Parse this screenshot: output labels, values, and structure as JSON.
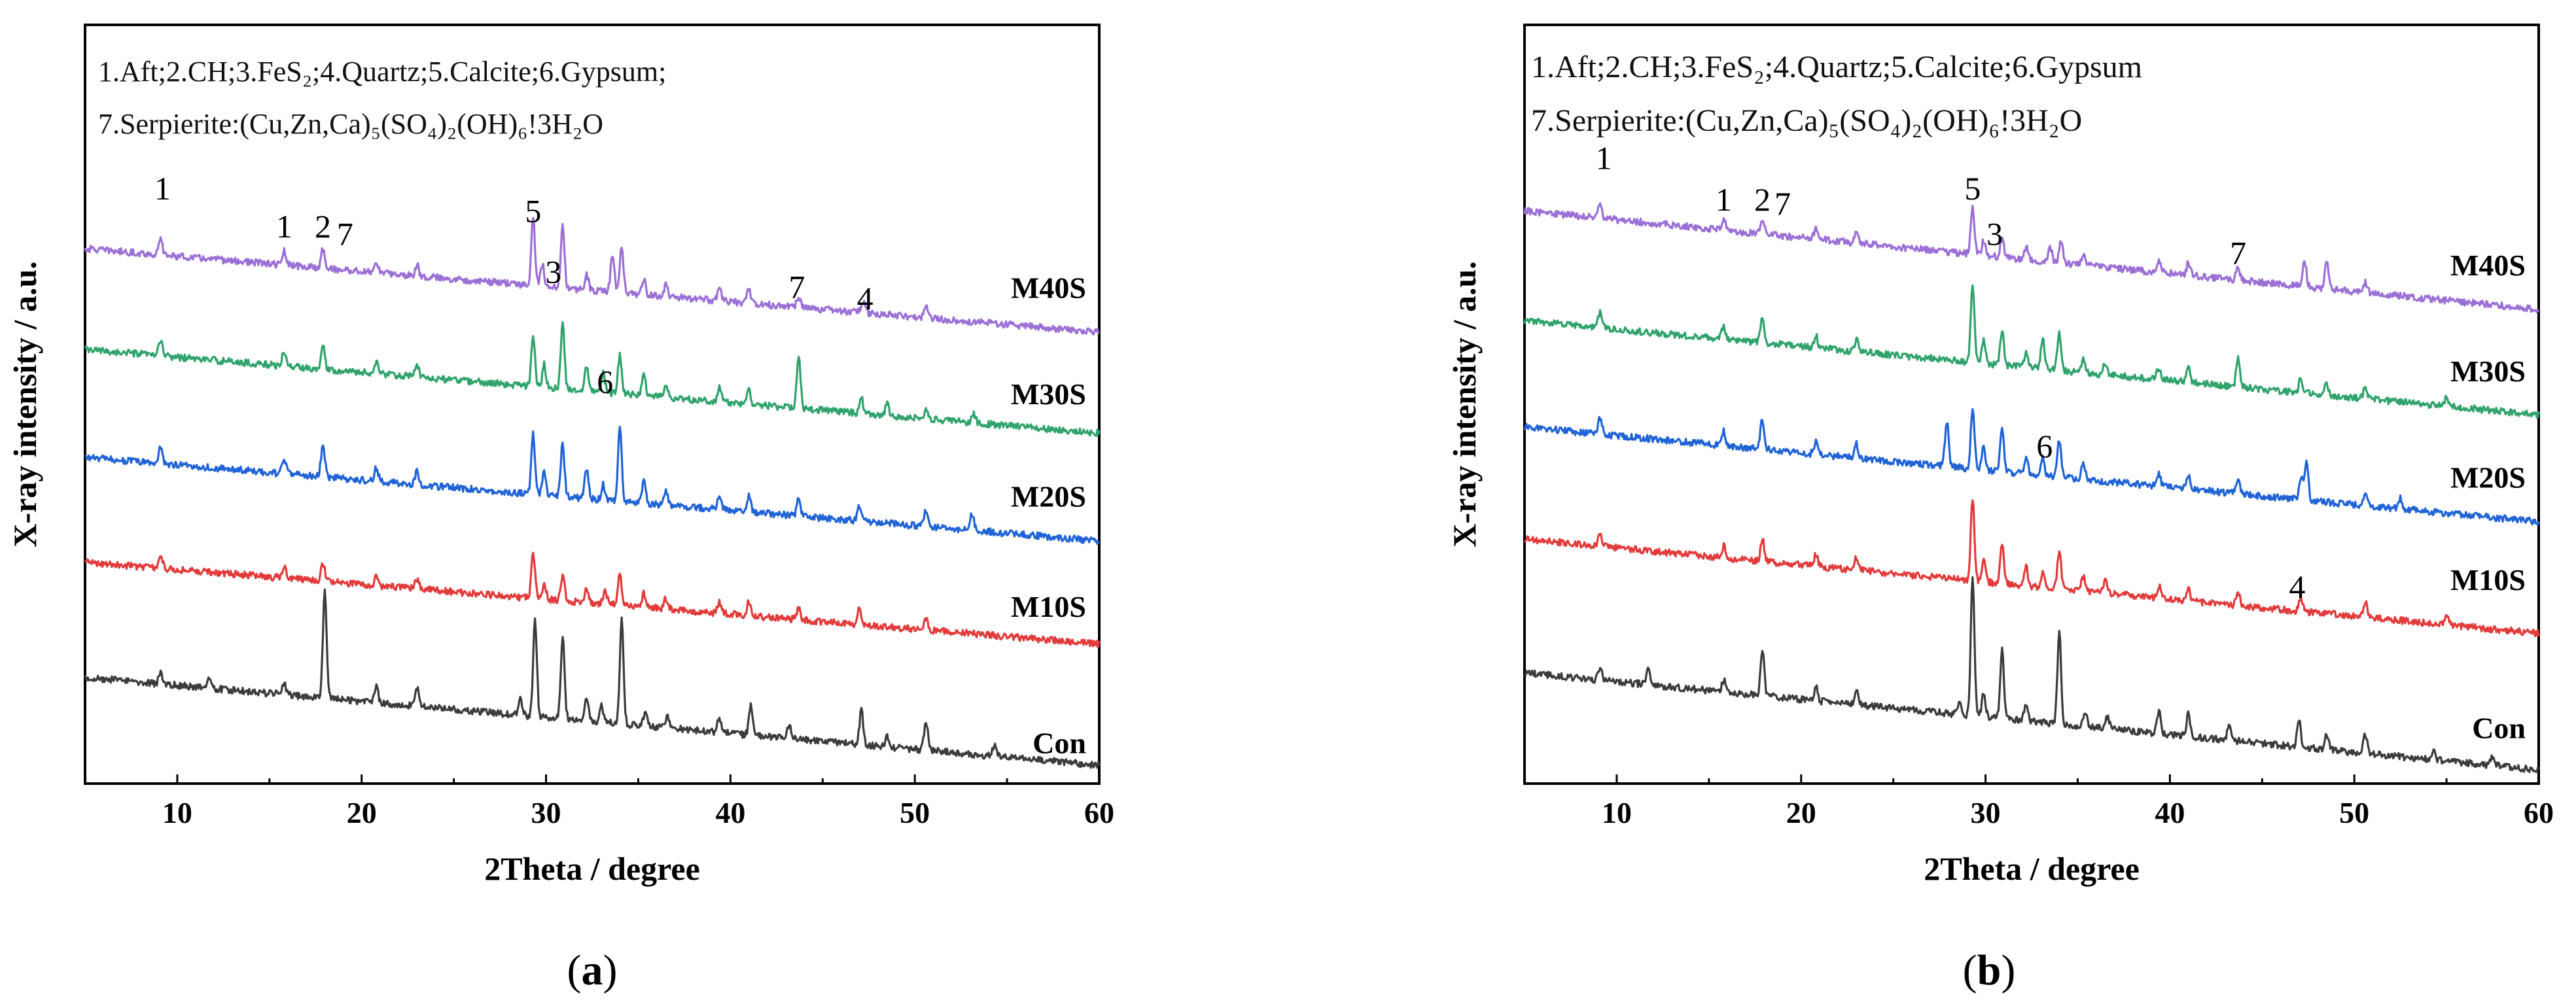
{
  "figure": {
    "panel_labels": [
      "a",
      "b"
    ],
    "colors": {
      "M40S": "#9b6fd6",
      "M30S": "#2fa36b",
      "M20S": "#1f63d6",
      "M10S": "#e23a3a",
      "Con": "#3b3b3b"
    }
  },
  "chart_data": [
    {
      "type": "line",
      "panel": "a",
      "xlabel": "2Theta / degree",
      "ylabel": "X-ray intensity / a.u.",
      "xlim": [
        5,
        60
      ],
      "ylim": [
        0,
        100
      ],
      "xticks": [
        10,
        20,
        30,
        40,
        50,
        60
      ],
      "legend_lines": [
        "1.Aft;2.CH;3.FeS₂;4.Quartz;5.Calcite;6.Gypsum;",
        "7.Serpierite:(Cu,Zn,Ca)₅(SO₄)₂(OH)₆!3H₂O"
      ],
      "series": [
        {
          "name": "M40S",
          "color": "#9b6fd6",
          "start": 70.5,
          "end": 59.5,
          "peaks": [
            [
              9.1,
              2
            ],
            [
              15.8,
              1.8
            ],
            [
              17.9,
              2.6
            ],
            [
              20.8,
              1.5
            ],
            [
              23,
              1.5
            ],
            [
              29.3,
              9
            ],
            [
              29.8,
              3
            ],
            [
              30.9,
              8
            ],
            [
              32.2,
              2
            ],
            [
              33.6,
              5
            ],
            [
              34.1,
              6
            ],
            [
              35.3,
              2
            ],
            [
              36.5,
              1.6
            ],
            [
              39.4,
              1.8
            ],
            [
              41.0,
              1.8
            ],
            [
              43.7,
              1.5
            ],
            [
              47.2,
              1.4
            ],
            [
              50.6,
              1.4
            ]
          ]
        },
        {
          "name": "M30S",
          "color": "#2fa36b",
          "start": 57.2,
          "end": 46.2,
          "peaks": [
            [
              9.1,
              2.2
            ],
            [
              15.8,
              2
            ],
            [
              17.9,
              3.5
            ],
            [
              20.8,
              1.6
            ],
            [
              23,
              1.6
            ],
            [
              29.3,
              7
            ],
            [
              29.9,
              3
            ],
            [
              30.9,
              8.5
            ],
            [
              32.2,
              3.5
            ],
            [
              33.1,
              2.5
            ],
            [
              34.0,
              5
            ],
            [
              35.3,
              3
            ],
            [
              36.5,
              1.8
            ],
            [
              39.4,
              1.8
            ],
            [
              41.0,
              2
            ],
            [
              43.7,
              7
            ],
            [
              47.1,
              2
            ],
            [
              48.5,
              1.5
            ],
            [
              50.6,
              1.4
            ],
            [
              53.2,
              1.2
            ]
          ]
        },
        {
          "name": "M20S",
          "color": "#1f63d6",
          "start": 43.0,
          "end": 32.0,
          "peaks": [
            [
              9.1,
              2.2
            ],
            [
              15.8,
              2
            ],
            [
              17.9,
              4.5
            ],
            [
              20.8,
              1.8
            ],
            [
              23,
              1.8
            ],
            [
              29.3,
              8
            ],
            [
              29.9,
              3
            ],
            [
              30.9,
              7
            ],
            [
              32.2,
              4
            ],
            [
              33.1,
              2
            ],
            [
              34.0,
              10
            ],
            [
              35.3,
              3
            ],
            [
              36.5,
              2
            ],
            [
              39.4,
              1.8
            ],
            [
              41.0,
              2
            ],
            [
              43.7,
              2.5
            ],
            [
              47.0,
              2.2
            ],
            [
              50.6,
              2
            ],
            [
              53.1,
              2.2
            ]
          ]
        },
        {
          "name": "M10S",
          "color": "#e23a3a",
          "start": 29.2,
          "end": 18.4,
          "peaks": [
            [
              9.1,
              1.6
            ],
            [
              15.8,
              1.4
            ],
            [
              17.9,
              2.5
            ],
            [
              20.8,
              1.4
            ],
            [
              23,
              1.4
            ],
            [
              29.3,
              6
            ],
            [
              29.9,
              2
            ],
            [
              30.9,
              3.5
            ],
            [
              32.2,
              2
            ],
            [
              33.2,
              2
            ],
            [
              34.0,
              4
            ],
            [
              35.3,
              1.8
            ],
            [
              36.5,
              1.5
            ],
            [
              39.4,
              1.4
            ],
            [
              41.0,
              1.8
            ],
            [
              43.7,
              1.4
            ],
            [
              47.0,
              2.2
            ],
            [
              50.6,
              1.5
            ]
          ]
        },
        {
          "name": "Con",
          "color": "#3b3b3b",
          "start": 14.0,
          "end": 2.4,
          "peaks": [
            [
              9.1,
              1.6
            ],
            [
              11.7,
              1.2
            ],
            [
              15.8,
              1.4
            ],
            [
              18.0,
              14
            ],
            [
              20.8,
              2
            ],
            [
              23.0,
              2.4
            ],
            [
              28.6,
              2.6
            ],
            [
              29.4,
              13
            ],
            [
              30.9,
              11
            ],
            [
              32.2,
              3
            ],
            [
              33.0,
              2.4
            ],
            [
              34.1,
              14
            ],
            [
              35.4,
              2
            ],
            [
              36.6,
              1.5
            ],
            [
              39.4,
              2
            ],
            [
              41.1,
              4
            ],
            [
              43.2,
              1.8
            ],
            [
              47.1,
              4.5
            ],
            [
              48.5,
              1.5
            ],
            [
              50.6,
              4
            ],
            [
              54.3,
              1.4
            ]
          ]
        }
      ],
      "series_labels": [
        {
          "text": "M40S",
          "y": 64
        },
        {
          "text": "M30S",
          "y": 50
        },
        {
          "text": "M20S",
          "y": 36.5
        },
        {
          "text": "M10S",
          "y": 22
        },
        {
          "text": "Con",
          "y": 4
        }
      ],
      "peak_markers": [
        {
          "text": "1",
          "x": 9.2,
          "y": 77
        },
        {
          "text": "1",
          "x": 15.8,
          "y": 72
        },
        {
          "text": "2",
          "x": 17.9,
          "y": 72
        },
        {
          "text": "7",
          "x": 19.1,
          "y": 71
        },
        {
          "text": "5",
          "x": 29.3,
          "y": 74
        },
        {
          "text": "3",
          "x": 30.4,
          "y": 66
        },
        {
          "text": "6",
          "x": 33.2,
          "y": 51.5
        },
        {
          "text": "7",
          "x": 43.6,
          "y": 64
        },
        {
          "text": "4",
          "x": 47.3,
          "y": 62.5
        }
      ]
    },
    {
      "type": "line",
      "panel": "b",
      "xlabel": "2Theta / degree",
      "ylabel": "X-ray intensity / a.u.",
      "xlim": [
        5,
        60
      ],
      "ylim": [
        0,
        100
      ],
      "xticks": [
        10,
        20,
        30,
        40,
        50,
        60
      ],
      "legend_lines": [
        "1.Aft;2.CH;3.FeS₂;4.Quartz;5.Calcite;6.Gypsum",
        "7.Serpierite:(Cu,Zn,Ca)₅(SO₄)₂(OH)₆!3H₂O"
      ],
      "series": [
        {
          "name": "M40S",
          "color": "#9b6fd6",
          "start": 75.5,
          "end": 62.5,
          "peaks": [
            [
              9.1,
              1.8
            ],
            [
              15.8,
              1.6
            ],
            [
              17.9,
              2
            ],
            [
              20.8,
              1.4
            ],
            [
              23,
              1.4
            ],
            [
              29.3,
              6
            ],
            [
              29.9,
              2
            ],
            [
              30.9,
              2.5
            ],
            [
              32.2,
              1.6
            ],
            [
              33.5,
              2
            ],
            [
              34.1,
              3
            ],
            [
              35.3,
              1.5
            ],
            [
              39.4,
              1.6
            ],
            [
              41.0,
              1.6
            ],
            [
              43.7,
              1.6
            ],
            [
              47.3,
              3.5
            ],
            [
              48.5,
              4
            ],
            [
              50.6,
              1.4
            ]
          ]
        },
        {
          "name": "M30S",
          "color": "#2fa36b",
          "start": 61.0,
          "end": 48.6,
          "peaks": [
            [
              9.1,
              2
            ],
            [
              15.8,
              1.8
            ],
            [
              17.9,
              3.5
            ],
            [
              20.8,
              1.6
            ],
            [
              23,
              1.6
            ],
            [
              29.3,
              10
            ],
            [
              29.9,
              3
            ],
            [
              30.9,
              4.5
            ],
            [
              32.2,
              2
            ],
            [
              33.1,
              4
            ],
            [
              34.0,
              5
            ],
            [
              35.3,
              2
            ],
            [
              36.5,
              1.6
            ],
            [
              39.4,
              1.6
            ],
            [
              41.0,
              1.8
            ],
            [
              43.7,
              4
            ],
            [
              47.1,
              2
            ],
            [
              48.5,
              1.6
            ],
            [
              50.6,
              1.4
            ],
            [
              55,
              1.2
            ]
          ]
        },
        {
          "name": "M20S",
          "color": "#1f63d6",
          "start": 47.0,
          "end": 34.5,
          "peaks": [
            [
              9.1,
              2.2
            ],
            [
              15.8,
              2
            ],
            [
              17.9,
              4
            ],
            [
              20.8,
              1.8
            ],
            [
              23,
              1.8
            ],
            [
              27.9,
              6
            ],
            [
              29.3,
              8
            ],
            [
              29.9,
              3
            ],
            [
              30.9,
              6
            ],
            [
              32.2,
              2
            ],
            [
              33.1,
              2.5
            ],
            [
              34.0,
              5
            ],
            [
              35.3,
              2
            ],
            [
              39.4,
              1.8
            ],
            [
              41.0,
              1.8
            ],
            [
              43.7,
              1.8
            ],
            [
              47.1,
              3
            ],
            [
              47.4,
              5
            ],
            [
              50.6,
              1.6
            ],
            [
              52.5,
              1.4
            ]
          ]
        },
        {
          "name": "M10S",
          "color": "#e23a3a",
          "start": 32.2,
          "end": 19.8,
          "peaks": [
            [
              9.1,
              1.8
            ],
            [
              15.8,
              1.5
            ],
            [
              17.9,
              3
            ],
            [
              20.8,
              1.6
            ],
            [
              23,
              1.6
            ],
            [
              29.3,
              11
            ],
            [
              29.9,
              3
            ],
            [
              30.9,
              5.5
            ],
            [
              32.2,
              2.4
            ],
            [
              33.1,
              2
            ],
            [
              34.0,
              5
            ],
            [
              35.3,
              2
            ],
            [
              36.5,
              1.6
            ],
            [
              39.4,
              1.6
            ],
            [
              41.0,
              1.8
            ],
            [
              43.7,
              1.6
            ],
            [
              47.1,
              1.6
            ],
            [
              50.6,
              2
            ],
            [
              55,
              1.2
            ]
          ]
        },
        {
          "name": "Con",
          "color": "#3b3b3b",
          "start": 14.6,
          "end": 1.8,
          "peaks": [
            [
              9.1,
              1.6
            ],
            [
              11.7,
              2.2
            ],
            [
              15.8,
              1.6
            ],
            [
              17.9,
              6
            ],
            [
              20.8,
              1.8
            ],
            [
              23.0,
              2
            ],
            [
              28.6,
              2
            ],
            [
              29.3,
              18
            ],
            [
              29.9,
              3
            ],
            [
              30.9,
              9
            ],
            [
              32.2,
              2.4
            ],
            [
              34.0,
              12
            ],
            [
              35.4,
              2
            ],
            [
              36.6,
              1.6
            ],
            [
              39.4,
              3
            ],
            [
              41.0,
              3
            ],
            [
              43.2,
              1.8
            ],
            [
              47.0,
              3.5
            ],
            [
              48.5,
              2
            ],
            [
              50.6,
              2.5
            ],
            [
              54.3,
              1.4
            ],
            [
              57.5,
              1.2
            ]
          ]
        }
      ],
      "series_labels": [
        {
          "text": "M40S",
          "y": 67
        },
        {
          "text": "M30S",
          "y": 53
        },
        {
          "text": "M20S",
          "y": 39
        },
        {
          "text": "M10S",
          "y": 25.5
        },
        {
          "text": "Con",
          "y": 6
        }
      ],
      "peak_markers": [
        {
          "text": "1",
          "x": 9.3,
          "y": 81
        },
        {
          "text": "1",
          "x": 15.8,
          "y": 75.5
        },
        {
          "text": "2",
          "x": 17.9,
          "y": 75.5
        },
        {
          "text": "7",
          "x": 19.0,
          "y": 75
        },
        {
          "text": "5",
          "x": 29.3,
          "y": 77
        },
        {
          "text": "3",
          "x": 30.5,
          "y": 71
        },
        {
          "text": "7",
          "x": 43.7,
          "y": 68.5
        },
        {
          "text": "6",
          "x": 33.2,
          "y": 43
        },
        {
          "text": "4",
          "x": 46.9,
          "y": 24.5
        }
      ]
    }
  ]
}
